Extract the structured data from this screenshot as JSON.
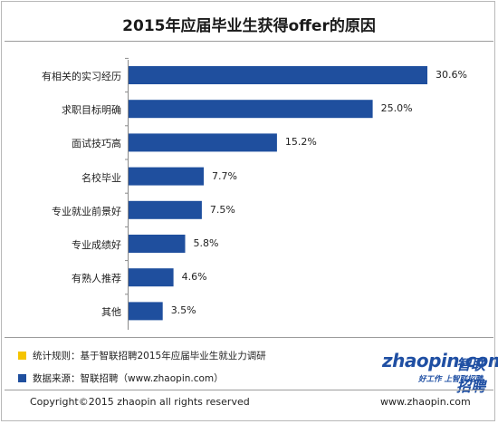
{
  "chart_data": {
    "type": "bar",
    "orientation": "horizontal",
    "title": "2015年应届毕业生获得offer的原因",
    "categories": [
      "有相关的实习经历",
      "求职目标明确",
      "面试技巧高",
      "名校毕业",
      "专业就业前景好",
      "专业成绩好",
      "有熟人推荐",
      "其他"
    ],
    "values": [
      30.6,
      25.0,
      15.2,
      7.7,
      7.5,
      5.8,
      4.6,
      3.5
    ],
    "value_labels": [
      "30.6%",
      "25.0%",
      "15.2%",
      "7.7%",
      "7.5%",
      "5.8%",
      "4.6%",
      "3.5%"
    ],
    "xlim": [
      0,
      30.6
    ],
    "grid": false,
    "legend": "none",
    "bar_color": "#1f4f9e"
  },
  "notes": [
    {
      "color": "#f5c400",
      "text": "统计规则：基于智联招聘2015年应届毕业生就业力调研"
    },
    {
      "color": "#1f4f9e",
      "text": "数据来源：智联招聘（www.zhaopin.com）"
    }
  ],
  "logo": {
    "word": "zhaopin.com",
    "cn": "智联招聘",
    "slogan": "好工作  上智联招聘"
  },
  "footer": {
    "copyright": "Copyright©2015 zhaopin all rights reserved",
    "url": "www.zhaopin.com"
  }
}
